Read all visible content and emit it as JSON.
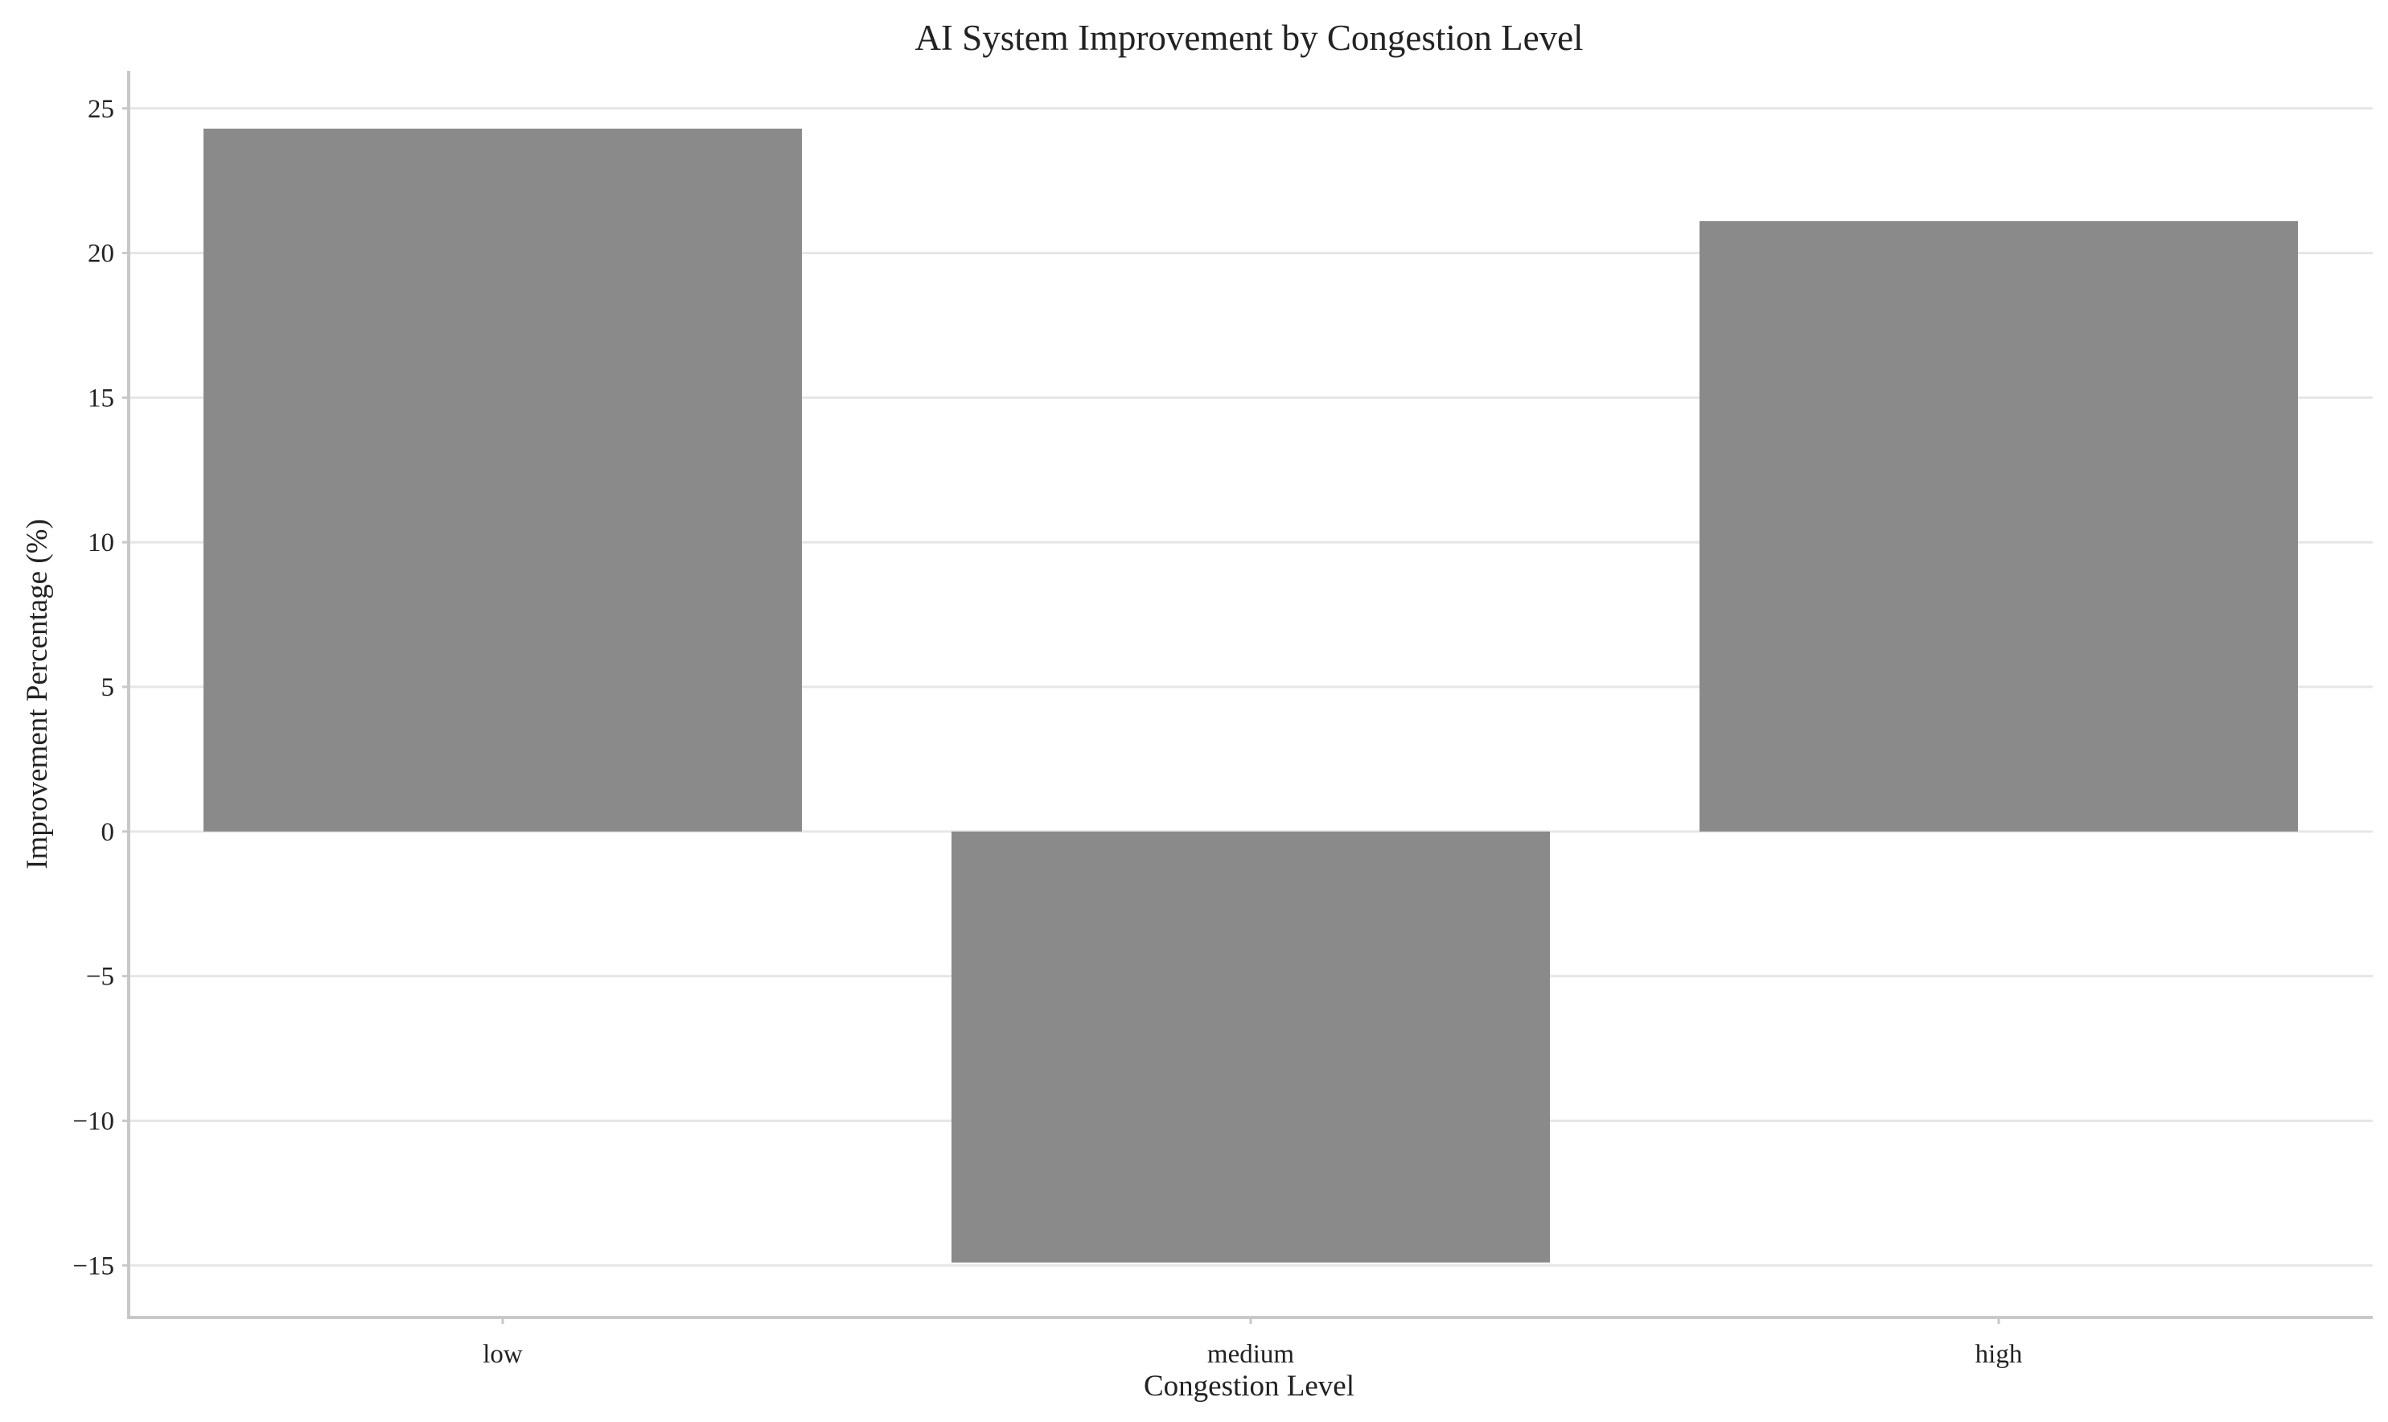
{
  "chart_data": {
    "type": "bar",
    "title": "AI System Improvement by Congestion Level",
    "xlabel": "Congestion Level",
    "ylabel": "Improvement Percentage (%)",
    "categories": [
      "low",
      "medium",
      "high"
    ],
    "values": [
      24.3,
      -14.9,
      21.1
    ],
    "ylim": [
      -16.8,
      26.3
    ],
    "yticks": [
      -15,
      -10,
      -5,
      0,
      5,
      10,
      15,
      20,
      25
    ],
    "ytick_labels": [
      "−15",
      "−10",
      "−5",
      "0",
      "5",
      "10",
      "15",
      "20",
      "25"
    ],
    "bar_color": "#8a8a8a",
    "grid": "horizontal",
    "legend": "none"
  }
}
